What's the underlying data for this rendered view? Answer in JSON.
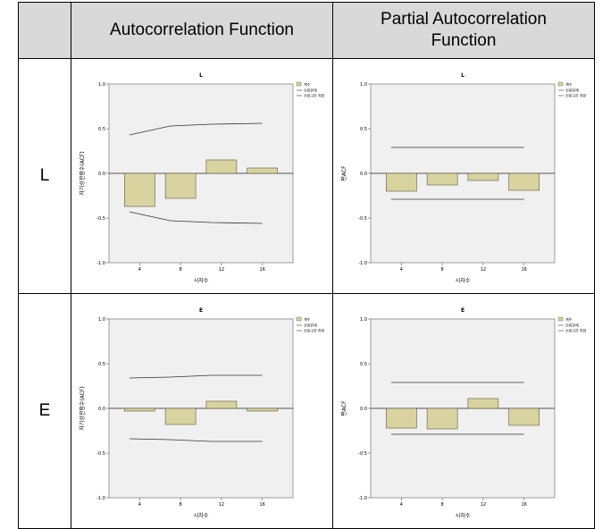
{
  "table": {
    "headers": [
      "",
      "Autocorrelation Function",
      "Partial Autocorrelation Function"
    ],
    "rows": [
      {
        "label": "L"
      },
      {
        "label": "E"
      }
    ]
  },
  "legend": {
    "coef": "계수",
    "upper": "신뢰한계",
    "lower": "신뢰구간 하한"
  },
  "colors": {
    "bar": "#d9d3a0",
    "bar_stroke": "#5a5a40",
    "plot_bg": "#f0f0f0",
    "header_bg": "#d9d9d9"
  },
  "chart_data": [
    {
      "type": "bar",
      "title": "L",
      "xlabel": "시차수",
      "ylabel": "자기상관함수(ACF)",
      "ylim": [
        -1,
        1
      ],
      "yticks": [
        "1.0",
        "0.5",
        "0.0",
        "-0.5",
        "-1.0"
      ],
      "xticks": [
        "4",
        "8",
        "12",
        "16"
      ],
      "x": [
        4,
        8,
        12,
        16
      ],
      "values": [
        -0.37,
        -0.28,
        0.15,
        0.06
      ],
      "upper": [
        [
          3,
          0.43
        ],
        [
          7,
          0.53
        ],
        [
          11,
          0.55
        ],
        [
          16,
          0.56
        ]
      ],
      "lower": [
        [
          3,
          -0.43
        ],
        [
          7,
          -0.53
        ],
        [
          11,
          -0.55
        ],
        [
          16,
          -0.56
        ]
      ]
    },
    {
      "type": "bar",
      "title": "L",
      "xlabel": "시차수",
      "ylabel": "편ACF",
      "ylim": [
        -1,
        1
      ],
      "yticks": [
        "1.0",
        "0.5",
        "0.0",
        "-0.5",
        "-1.0"
      ],
      "xticks": [
        "4",
        "8",
        "12",
        "16"
      ],
      "x": [
        4,
        8,
        12,
        16
      ],
      "values": [
        -0.2,
        -0.13,
        -0.08,
        -0.19
      ],
      "upper": [
        [
          3,
          0.29
        ],
        [
          16,
          0.29
        ]
      ],
      "lower": [
        [
          3,
          -0.29
        ],
        [
          16,
          -0.29
        ]
      ]
    },
    {
      "type": "bar",
      "title": "E",
      "xlabel": "시차수",
      "ylabel": "자기상관함수(ACF)",
      "ylim": [
        -1,
        1
      ],
      "yticks": [
        "1.0",
        "0.5",
        "0.0",
        "-0.5",
        "-1.0"
      ],
      "xticks": [
        "4",
        "8",
        "12",
        "16"
      ],
      "x": [
        4,
        8,
        12,
        16
      ],
      "values": [
        -0.03,
        -0.18,
        0.08,
        -0.03
      ],
      "upper": [
        [
          3,
          0.34
        ],
        [
          7,
          0.35
        ],
        [
          11,
          0.37
        ],
        [
          16,
          0.37
        ]
      ],
      "lower": [
        [
          3,
          -0.34
        ],
        [
          7,
          -0.35
        ],
        [
          11,
          -0.37
        ],
        [
          16,
          -0.37
        ]
      ]
    },
    {
      "type": "bar",
      "title": "E",
      "xlabel": "시차수",
      "ylabel": "편ACF",
      "ylim": [
        -1,
        1
      ],
      "yticks": [
        "1.0",
        "0.5",
        "0.0",
        "-0.5",
        "-1.0"
      ],
      "xticks": [
        "4",
        "8",
        "12",
        "16"
      ],
      "x": [
        4,
        8,
        12,
        16
      ],
      "values": [
        -0.22,
        -0.23,
        0.11,
        -0.19
      ],
      "upper": [
        [
          3,
          0.29
        ],
        [
          16,
          0.29
        ]
      ],
      "lower": [
        [
          3,
          -0.29
        ],
        [
          16,
          -0.29
        ]
      ]
    }
  ]
}
